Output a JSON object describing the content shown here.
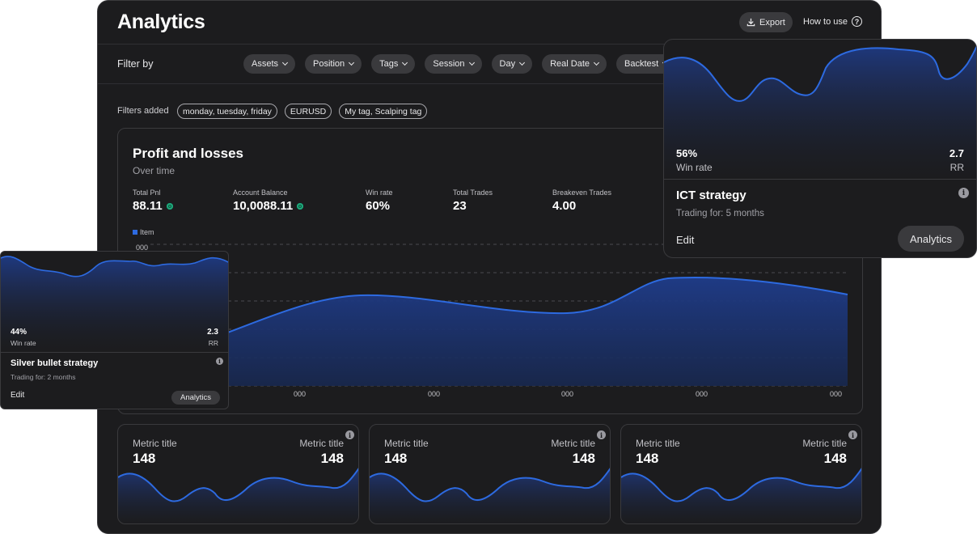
{
  "header": {
    "title": "Analytics",
    "export_label": "Export",
    "howto_label": "How to use"
  },
  "filters": {
    "label": "Filter by",
    "chips": [
      "Assets",
      "Position",
      "Tags",
      "Session",
      "Day",
      "Real Date",
      "Backtest"
    ],
    "added_label": "Filters added",
    "added": [
      "monday, tuesday, friday",
      "EURUSD",
      "My tag, Scalping tag"
    ]
  },
  "pnl": {
    "title": "Profit and losses",
    "subtitle": "Over time",
    "stats": [
      {
        "label": "Total Pnl",
        "value": "88.11",
        "dot": true
      },
      {
        "label": "Account Balance",
        "value": "10,0088.11",
        "dot": true
      },
      {
        "label": "Win rate",
        "value": "60%",
        "dot": false
      },
      {
        "label": "Total Trades",
        "value": "23",
        "dot": false
      },
      {
        "label": "Breakeven Trades",
        "value": "4.00",
        "dot": false
      }
    ],
    "legend": "Item",
    "y_tick": "000",
    "x_ticks": [
      "000",
      "000",
      "000",
      "000",
      "000"
    ]
  },
  "metrics": [
    {
      "left_label": "Metric title",
      "left_value": "148",
      "right_label": "Metric title",
      "right_value": "148"
    },
    {
      "left_label": "Metric title",
      "left_value": "148",
      "right_label": "Metric title",
      "right_value": "148"
    },
    {
      "left_label": "Metric title",
      "left_value": "148",
      "right_label": "Metric title",
      "right_value": "148"
    }
  ],
  "ict": {
    "win_value": "56%",
    "win_label": "Win rate",
    "rr_value": "2.7",
    "rr_label": "RR",
    "title": "ICT strategy",
    "subtitle": "Trading for: 5 months",
    "edit_label": "Edit",
    "analytics_label": "Analytics"
  },
  "silver": {
    "win_value": "44%",
    "win_label": "Win rate",
    "rr_value": "2.3",
    "rr_label": "RR",
    "title": "Silver bullet strategy",
    "subtitle": "Trading for: 2 months",
    "edit_label": "Edit",
    "analytics_label": "Analytics"
  },
  "colors": {
    "background": "#1c1c1e",
    "line": "#2d6ae0",
    "positive": "#1ea97c",
    "chip": "#3a3a3d"
  }
}
